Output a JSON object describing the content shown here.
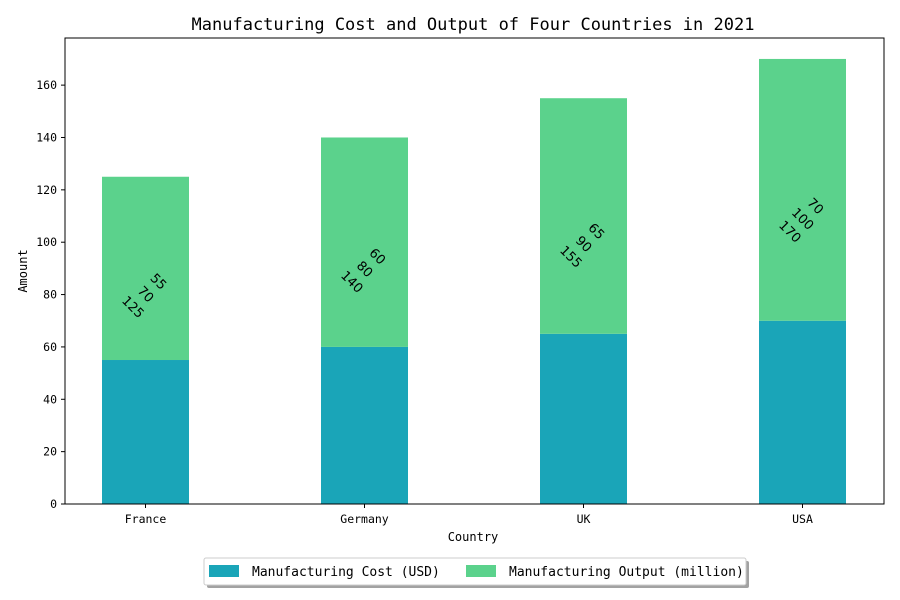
{
  "chart_data": {
    "type": "bar",
    "stacked": true,
    "title": "Manufacturing Cost and Output of Four Countries in 2021",
    "xlabel": "Country",
    "ylabel": "Amount",
    "categories": [
      "France",
      "Germany",
      "UK",
      "USA"
    ],
    "ylim": [
      0,
      178
    ],
    "yticks": [
      0,
      20,
      40,
      60,
      80,
      100,
      120,
      140,
      160
    ],
    "series": [
      {
        "name": "Manufacturing Cost (USD)",
        "values": [
          55,
          60,
          65,
          70
        ],
        "color": "#1aa5b8"
      },
      {
        "name": "Manufacturing Output (million)",
        "values": [
          70,
          80,
          90,
          100
        ],
        "color": "#5bd28c"
      }
    ],
    "annotations": [
      [
        "55",
        "70",
        "125"
      ],
      [
        "60",
        "80",
        "140"
      ],
      [
        "65",
        "90",
        "155"
      ],
      [
        "70",
        "100",
        "170"
      ]
    ],
    "legend_position": "bottom-center"
  }
}
